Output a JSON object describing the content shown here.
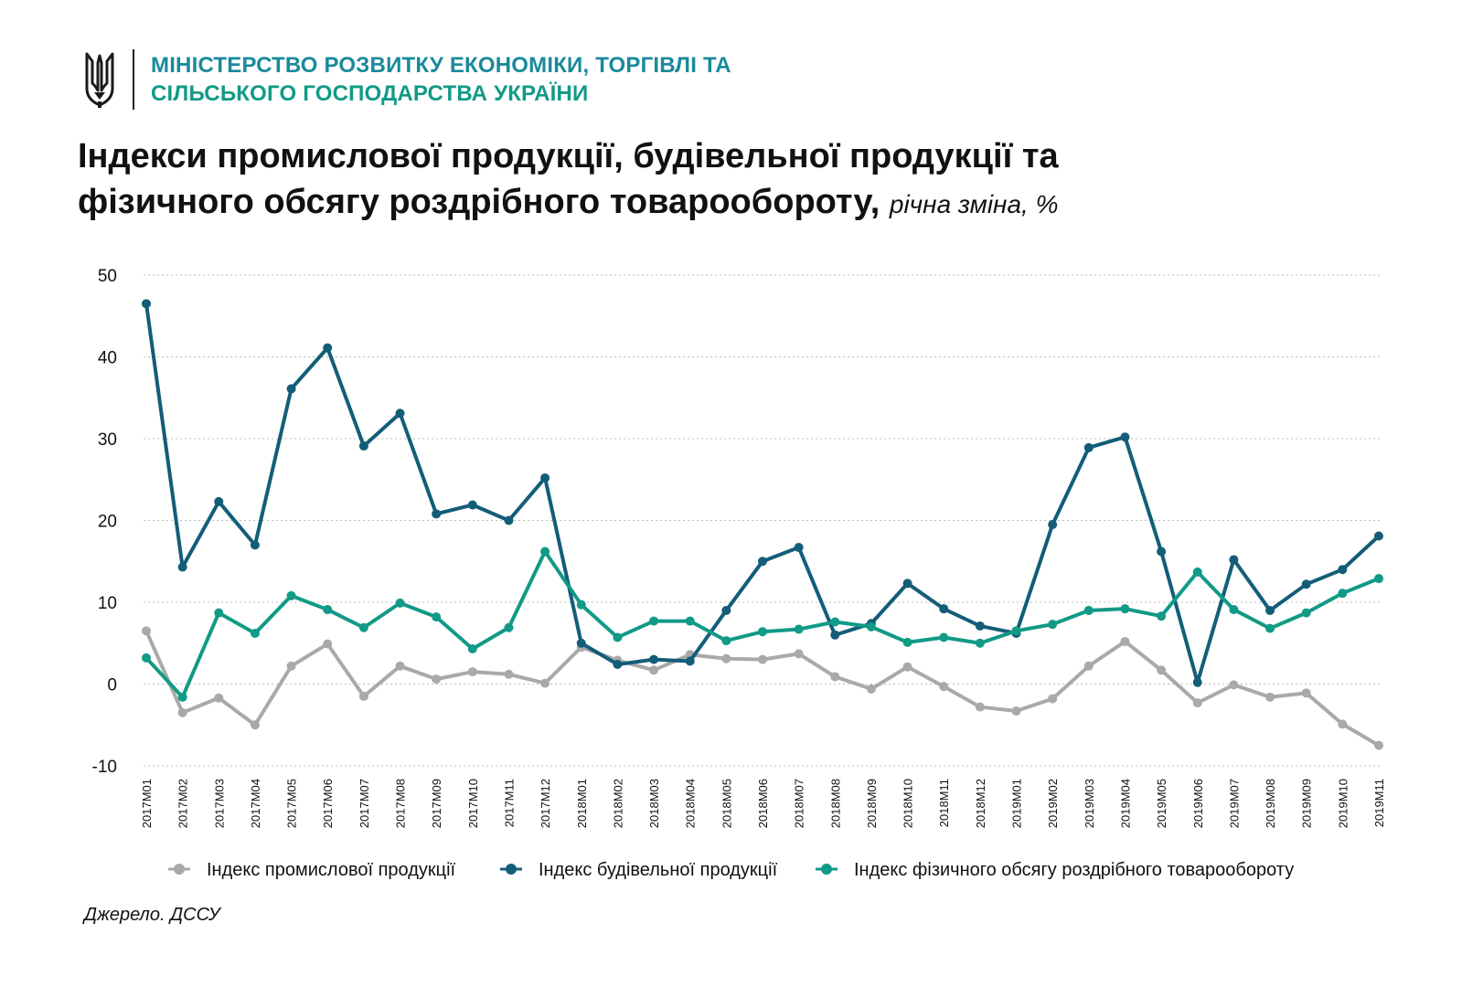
{
  "header": {
    "ministry_line1": "МІНІСТЕРСТВО РОЗВИТКУ ЕКОНОМІКИ, ТОРГІВЛІ ТА",
    "ministry_line2": "СІЛЬСЬКОГО ГОСПОДАРСТВА УКРАЇНИ",
    "logo_icon": "trident-coat-of-arms-icon",
    "colors": {
      "line1": "#1a8a9b",
      "line2": "#119a86"
    }
  },
  "title": {
    "line1": "Індекси промислової продукції, будівельної продукції та",
    "line2": "фізичного обсягу роздрібного товарообороту,",
    "subtitle": "річна зміна, %"
  },
  "source": "Джерело. ДССУ",
  "chart_data": {
    "type": "line",
    "categories": [
      "2017M01",
      "2017M02",
      "2017M03",
      "2017M04",
      "2017M05",
      "2017M06",
      "2017M07",
      "2017M08",
      "2017M09",
      "2017M10",
      "2017M11",
      "2017M12",
      "2018M01",
      "2018M02",
      "2018M03",
      "2018M04",
      "2018M05",
      "2018M06",
      "2018M07",
      "2018M08",
      "2018M09",
      "2018M10",
      "2018M11",
      "2018M12",
      "2019M01",
      "2019M02",
      "2019M03",
      "2019M04",
      "2019M05",
      "2019M06",
      "2019M07",
      "2019M08",
      "2019M09",
      "2019M10",
      "2019M11"
    ],
    "ylim": [
      -10,
      50
    ],
    "yticks": [
      50,
      40,
      30,
      20,
      10,
      0,
      -10
    ],
    "grid": "horizontal-dotted",
    "legend_position": "bottom",
    "series": [
      {
        "name": "Індекс промислової продукції",
        "color": "#a9a9a9",
        "values": [
          6.5,
          -3.5,
          -1.7,
          -5,
          2.2,
          4.9,
          -1.5,
          2.2,
          0.6,
          1.5,
          1.2,
          0.1,
          4.5,
          2.9,
          1.7,
          3.6,
          3.1,
          3.0,
          3.7,
          0.9,
          -0.6,
          2.1,
          -0.3,
          -2.8,
          -3.3,
          -1.8,
          2.2,
          5.2,
          1.7,
          -2.3,
          -0.1,
          -1.6,
          -1.1,
          -4.9,
          -7.5
        ]
      },
      {
        "name": "Індекс будівельної продукції",
        "color": "#135d79",
        "values": [
          46.5,
          14.3,
          22.3,
          17.0,
          36.1,
          41.1,
          29.1,
          33.1,
          20.8,
          21.9,
          20.0,
          25.2,
          5.0,
          2.4,
          3.0,
          2.8,
          9.0,
          15.0,
          16.7,
          6.0,
          7.4,
          12.3,
          9.2,
          7.1,
          6.2,
          19.5,
          28.9,
          30.2,
          16.2,
          0.2,
          15.2,
          9.0,
          12.2,
          14.0,
          18.1
        ]
      },
      {
        "name": "Індекс фізичного обсягу роздрібного товарообороту",
        "color": "#119a86",
        "values": [
          3.2,
          -1.6,
          8.7,
          6.2,
          10.8,
          9.1,
          6.9,
          9.9,
          8.2,
          4.3,
          6.9,
          16.2,
          9.7,
          5.7,
          7.7,
          7.7,
          5.3,
          6.4,
          6.7,
          7.6,
          7.0,
          5.1,
          5.7,
          5.0,
          6.5,
          7.3,
          9.0,
          9.2,
          8.3,
          13.7,
          9.1,
          6.8,
          8.7,
          11.1,
          12.9
        ]
      }
    ]
  }
}
